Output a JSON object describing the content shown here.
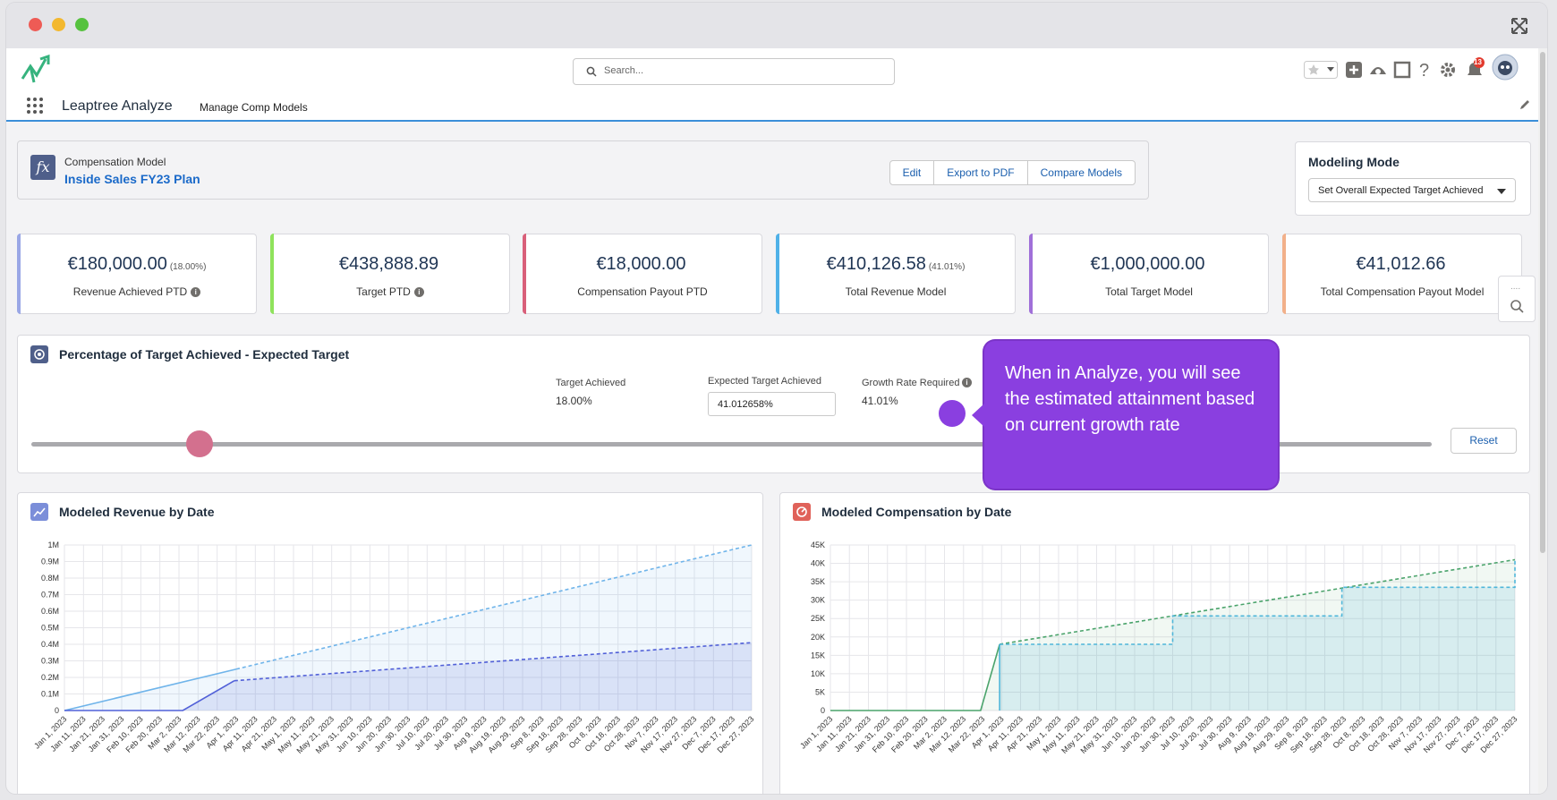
{
  "browser": {
    "expand_icon": "fullscreen-icon"
  },
  "header": {
    "search_placeholder": "Search...",
    "app_name": "Leaptree Analyze",
    "nav_item": "Manage Comp Models",
    "notification_count": "13"
  },
  "model": {
    "label": "Compensation Model",
    "name": "Inside Sales FY23 Plan",
    "buttons": [
      "Edit",
      "Export to PDF",
      "Compare Models"
    ]
  },
  "modeling_mode": {
    "title": "Modeling Mode",
    "selected": "Set Overall Expected Target Achieved"
  },
  "kpis": [
    {
      "value": "€180,000.00",
      "pct": "(18.00%)",
      "label": "Revenue Achieved PTD",
      "info": true,
      "color": "#9aa7e6"
    },
    {
      "value": "€438,888.89",
      "pct": "",
      "label": "Target PTD",
      "info": true,
      "color": "#8fe35c"
    },
    {
      "value": "€18,000.00",
      "pct": "",
      "label": "Compensation Payout PTD",
      "info": false,
      "color": "#d9607a"
    },
    {
      "value": "€410,126.58",
      "pct": "(41.01%)",
      "label": "Total Revenue Model",
      "info": false,
      "color": "#4fb1e8"
    },
    {
      "value": "€1,000,000.00",
      "pct": "",
      "label": "Total Target Model",
      "info": false,
      "color": "#a070d9"
    },
    {
      "value": "€41,012.66",
      "pct": "",
      "label": "Total Compensation Payout Model",
      "info": false,
      "color": "#f2b08a"
    }
  ],
  "target_panel": {
    "title": "Percentage of Target Achieved - Expected Target",
    "target_achieved_label": "Target Achieved",
    "target_achieved_value": "18.00%",
    "expected_label": "Expected Target Achieved",
    "expected_value": "41.012658%",
    "growth_label": "Growth Rate Required",
    "growth_value": "41.01%",
    "slider_value": 0.12,
    "reset_label": "Reset"
  },
  "tooltip": {
    "text": "When in Analyze, you will see the estimated attainment based on current growth rate"
  },
  "charts": {
    "revenue_title": "Modeled Revenue by Date",
    "compensation_title": "Modeled Compensation by Date"
  },
  "chart_data": [
    {
      "type": "area",
      "title": "Modeled Revenue by Date",
      "x_labels": [
        "Jan 1, 2023",
        "Jan 11, 2023",
        "Jan 21, 2023",
        "Jan 31, 2023",
        "Feb 10, 2023",
        "Feb 20, 2023",
        "Mar 2, 2023",
        "Mar 12, 2023",
        "Mar 22, 2023",
        "Apr 1, 2023",
        "Apr 11, 2023",
        "Apr 21, 2023",
        "May 1, 2023",
        "May 11, 2023",
        "May 21, 2023",
        "May 31, 2023",
        "Jun 10, 2023",
        "Jun 20, 2023",
        "Jun 30, 2023",
        "Jul 10, 2023",
        "Jul 20, 2023",
        "Jul 30, 2023",
        "Aug 9, 2023",
        "Aug 19, 2023",
        "Aug 29, 2023",
        "Sep 8, 2023",
        "Sep 18, 2023",
        "Sep 28, 2023",
        "Oct 8, 2023",
        "Oct 18, 2023",
        "Oct 28, 2023",
        "Nov 7, 2023",
        "Nov 17, 2023",
        "Nov 27, 2023",
        "Dec 7, 2023",
        "Dec 17, 2023",
        "Dec 27, 2023"
      ],
      "y_ticks": [
        "0",
        "0.1M",
        "0.2M",
        "0.3M",
        "0.4M",
        "0.5M",
        "0.6M",
        "0.7M",
        "0.8M",
        "0.9M",
        "1M"
      ],
      "ylim": [
        0,
        1000000
      ],
      "grid": true,
      "series": [
        {
          "color": "#6fb4ea",
          "style": "solid",
          "points": [
            [
              0,
              0
            ],
            [
              9,
              250000
            ]
          ]
        },
        {
          "color": "#6fb4ea",
          "style": "dashed",
          "points": [
            [
              9,
              250000
            ],
            [
              36,
              1000000
            ]
          ]
        },
        {
          "color": "#5160d8",
          "style": "solid",
          "points": [
            [
              0,
              0
            ],
            [
              6.2,
              0
            ],
            [
              8.9,
              180000
            ]
          ]
        },
        {
          "color": "#5160d8",
          "style": "dashed",
          "points": [
            [
              8.9,
              180000
            ],
            [
              36,
              410000
            ]
          ]
        }
      ]
    },
    {
      "type": "area",
      "title": "Modeled Compensation by Date",
      "x_labels": [
        "Jan 1, 2023",
        "Jan 11, 2023",
        "Jan 21, 2023",
        "Jan 31, 2023",
        "Feb 10, 2023",
        "Feb 20, 2023",
        "Mar 2, 2023",
        "Mar 12, 2023",
        "Mar 22, 2023",
        "Apr 1, 2023",
        "Apr 11, 2023",
        "Apr 21, 2023",
        "May 1, 2023",
        "May 11, 2023",
        "May 21, 2023",
        "May 31, 2023",
        "Jun 10, 2023",
        "Jun 20, 2023",
        "Jun 30, 2023",
        "Jul 10, 2023",
        "Jul 20, 2023",
        "Jul 30, 2023",
        "Aug 9, 2023",
        "Aug 19, 2023",
        "Aug 29, 2023",
        "Sep 8, 2023",
        "Sep 18, 2023",
        "Sep 28, 2023",
        "Oct 8, 2023",
        "Oct 18, 2023",
        "Oct 28, 2023",
        "Nov 7, 2023",
        "Nov 17, 2023",
        "Nov 27, 2023",
        "Dec 7, 2023",
        "Dec 17, 2023",
        "Dec 27, 2023"
      ],
      "y_ticks": [
        "0",
        "5K",
        "10K",
        "15K",
        "20K",
        "25K",
        "30K",
        "35K",
        "40K",
        "45K"
      ],
      "ylim": [
        0,
        45000
      ],
      "grid": true,
      "series": [
        {
          "color": "#4aa36b",
          "style": "solid",
          "points": [
            [
              0,
              0
            ],
            [
              7.9,
              0
            ],
            [
              8.9,
              18000
            ]
          ]
        },
        {
          "color": "#4aa36b",
          "style": "dashed",
          "points": [
            [
              8.9,
              18000
            ],
            [
              36,
              41000
            ]
          ]
        },
        {
          "color": "#4fb6d9",
          "style": "solid",
          "points": [
            [
              8.9,
              0
            ],
            [
              8.9,
              18000
            ]
          ]
        },
        {
          "color": "#4fb6d9",
          "style": "dashed",
          "points": [
            [
              8.9,
              18000
            ],
            [
              18,
              18000
            ],
            [
              18,
              25700
            ],
            [
              26.9,
              25700
            ],
            [
              26.9,
              33500
            ],
            [
              36,
              33500
            ],
            [
              36,
              41000
            ]
          ]
        }
      ]
    }
  ]
}
